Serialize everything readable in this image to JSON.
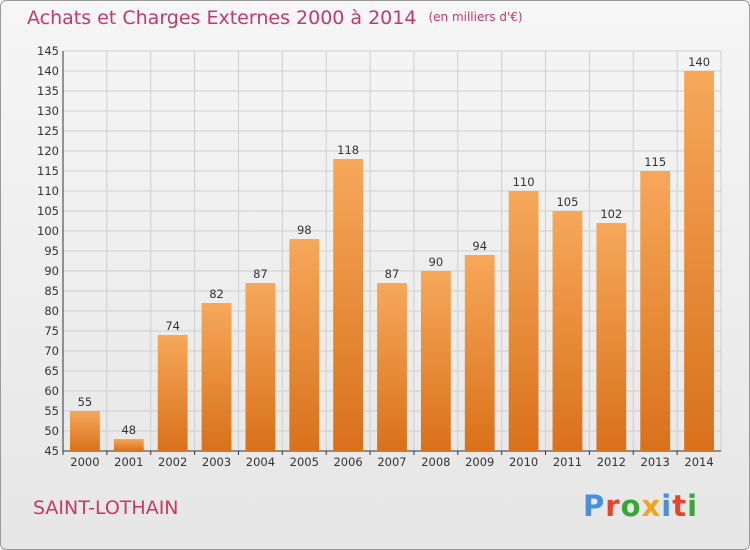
{
  "title": "Achats et Charges Externes 2000 à 2014",
  "subtitle": "(en milliers d'€)",
  "location": "SAINT-LOTHAIN",
  "logo": {
    "letters": [
      "P",
      "r",
      "o",
      "x",
      "i",
      "t",
      "i"
    ],
    "colors": [
      "#4a8fd8",
      "#e8432d",
      "#3aa53a",
      "#f2a51c",
      "#4a8fd8",
      "#e8432d",
      "#3aa53a"
    ]
  },
  "colors": {
    "bar_light": "#f6a85a",
    "bar_dark": "#d9711a",
    "title": "#c43a66"
  },
  "chart_data": {
    "type": "bar",
    "categories": [
      "2000",
      "2001",
      "2002",
      "2003",
      "2004",
      "2005",
      "2006",
      "2007",
      "2008",
      "2009",
      "2010",
      "2011",
      "2012",
      "2013",
      "2014"
    ],
    "values": [
      55,
      48,
      74,
      82,
      87,
      98,
      118,
      87,
      90,
      94,
      110,
      105,
      102,
      115,
      140
    ],
    "title": "Achats et Charges Externes 2000 à 2014",
    "subtitle": "(en milliers d'€)",
    "ylim": [
      45,
      145
    ],
    "yticks": [
      45,
      50,
      55,
      60,
      65,
      70,
      75,
      80,
      85,
      90,
      95,
      100,
      105,
      110,
      115,
      120,
      125,
      130,
      135,
      140,
      145
    ],
    "grid": true,
    "legend": "none"
  }
}
